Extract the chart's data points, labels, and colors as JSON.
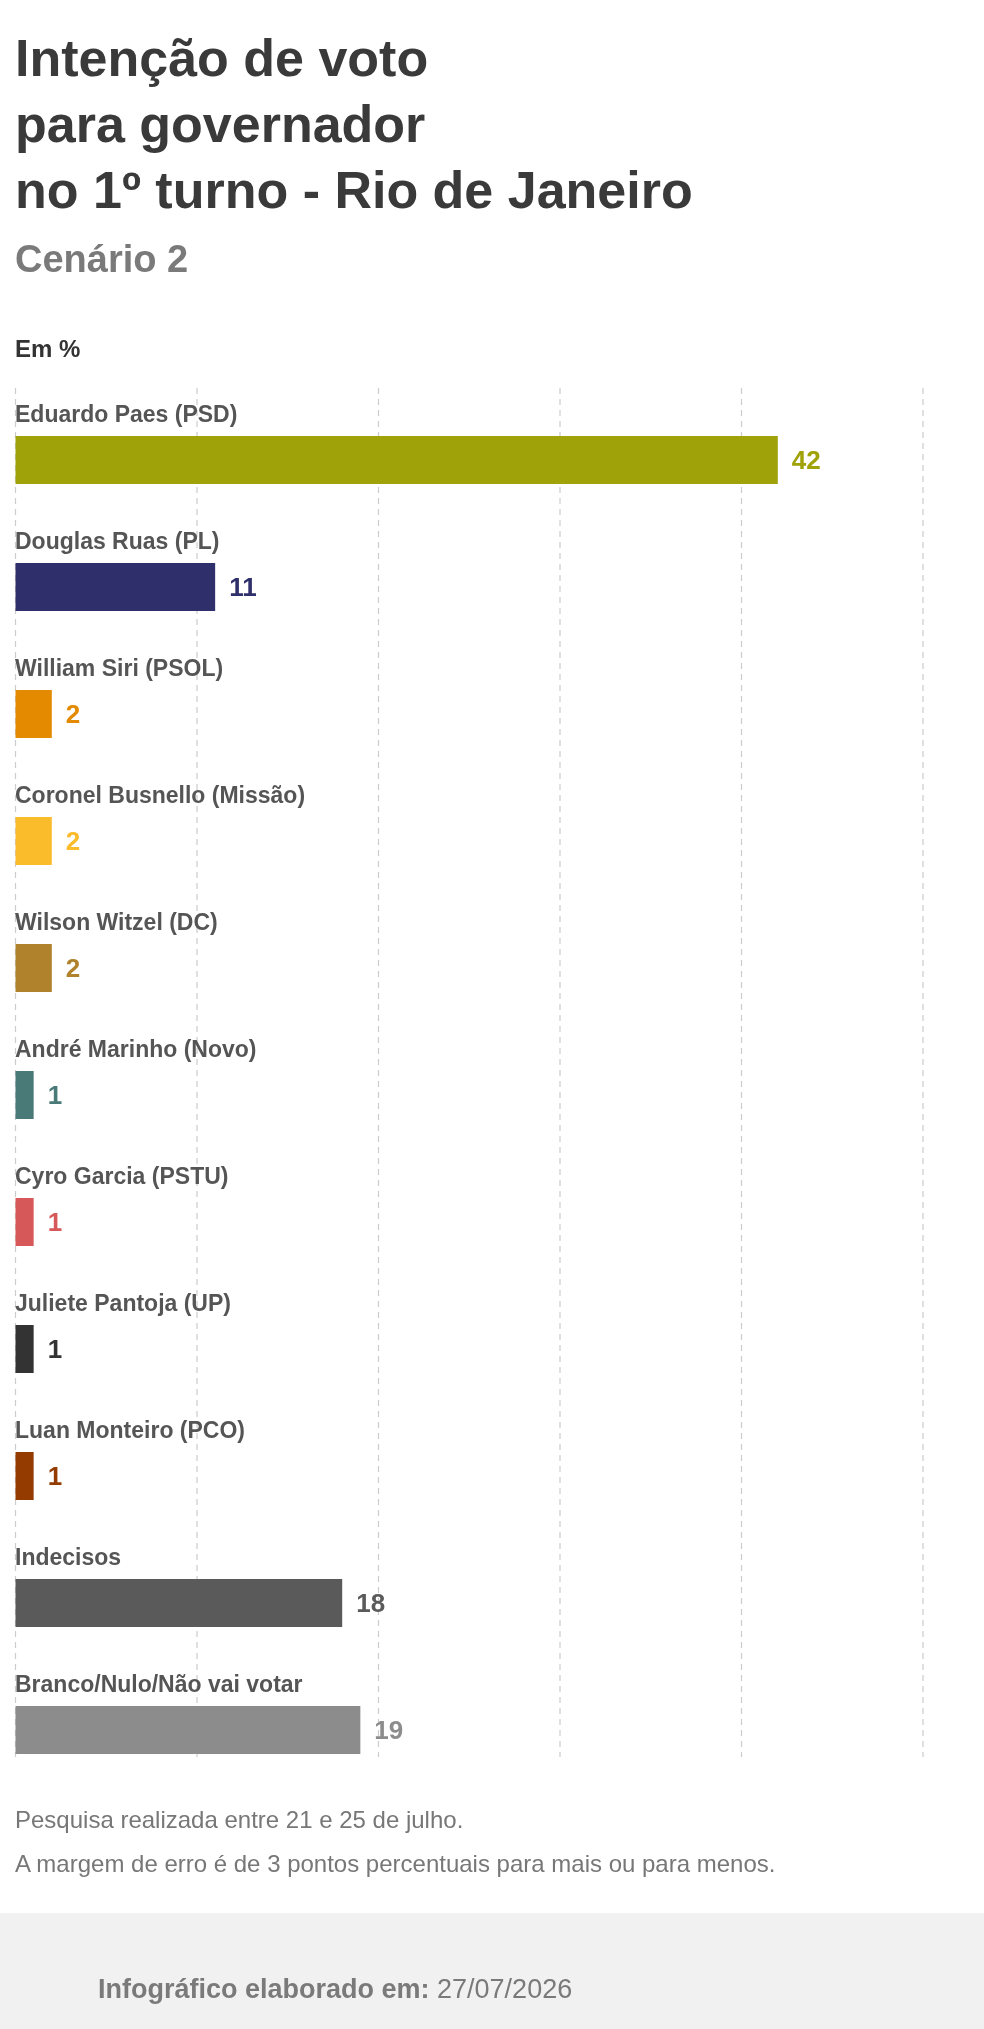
{
  "chart_data": {
    "type": "bar",
    "orientation": "horizontal",
    "title": "Intenção de voto\npara governador\nno 1º turno - Rio de Janeiro",
    "subtitle": "Cenário 2",
    "xlabel": "Em %",
    "categories": [
      "Eduardo Paes (PSD)",
      "Douglas Ruas (PL)",
      "William Siri (PSOL)",
      "Coronel Busnello (Missão)",
      "Wilson Witzel (DC)",
      "André Marinho (Novo)",
      "Cyro Garcia (PSTU)",
      "Juliete Pantoja (UP)",
      "Luan Monteiro (PCO)",
      "Indecisos",
      "Branco/Nulo/Não vai votar"
    ],
    "values": [
      42,
      11,
      2,
      2,
      2,
      1,
      1,
      1,
      1,
      18,
      19
    ],
    "colors": [
      "#a0a20a",
      "#2f2f6b",
      "#e38a00",
      "#fbbc2c",
      "#b0822c",
      "#4a7a78",
      "#d65858",
      "#333333",
      "#943c00",
      "#5a5a5a",
      "#8c8c8c"
    ],
    "xlim": [
      0,
      50
    ],
    "xticks": [
      {
        "value": 0,
        "label": null
      },
      {
        "value": 10,
        "label": null
      },
      {
        "value": 20,
        "label": null
      },
      {
        "value": 30,
        "label": null
      },
      {
        "value": 40,
        "label": null
      },
      {
        "value": 50,
        "label": null
      }
    ],
    "grid": "x",
    "data_labels": true,
    "annotations": [
      "Pesquisa realizada entre 21 e 25 de julho.",
      "A margem de erro é de 3 pontos percentuais para mais ou para menos.",
      "Infográfico elaborado em: 27/07/2026"
    ]
  }
}
